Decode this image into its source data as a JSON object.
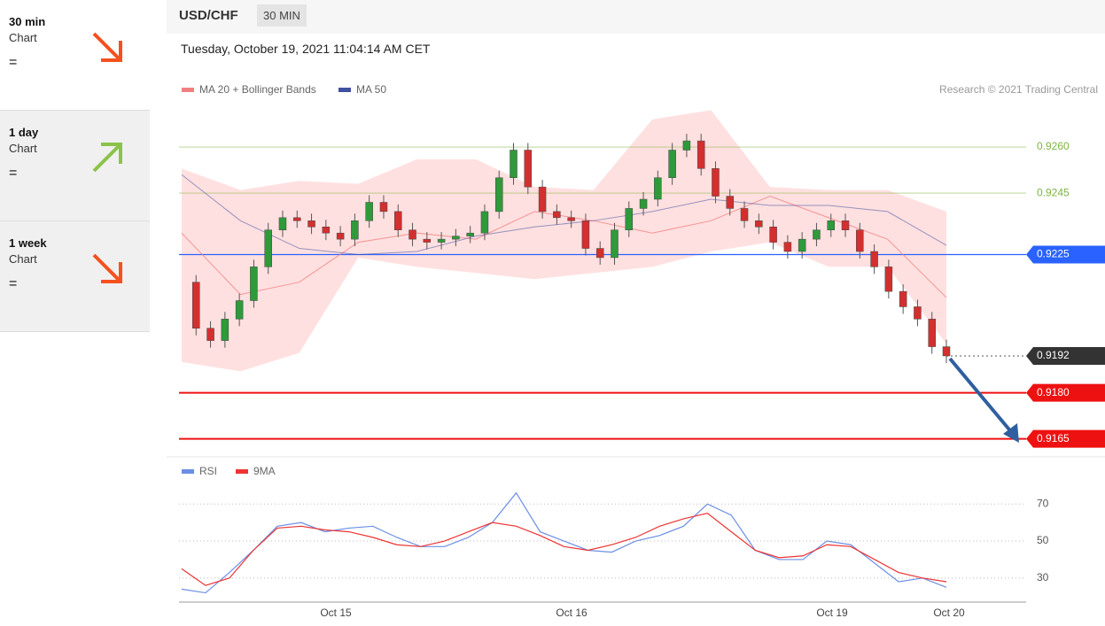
{
  "sidebar": [
    {
      "period": "30 min",
      "label": "Chart",
      "signal": "="
    },
    {
      "period": "1 day",
      "label": "Chart",
      "signal": "="
    },
    {
      "period": "1 week",
      "label": "Chart",
      "signal": "="
    }
  ],
  "header": {
    "symbol": "USD/CHF",
    "interval": "30 MIN",
    "timestamp": "Tuesday, October 19, 2021 11:04:14 AM CET"
  },
  "price_chart": {
    "type": "candlestick",
    "credit": "Research © 2021 Trading Central",
    "legend": [
      {
        "name": "MA 20 + Bollinger Bands",
        "color": "#f08080"
      },
      {
        "name": "MA 50",
        "color": "#3f51a0"
      }
    ],
    "ylim": [
      0.916,
      0.9275
    ],
    "levels": [
      {
        "value": 0.926,
        "label": "0.9260",
        "color": "#7cb342",
        "box": false,
        "dotted": false
      },
      {
        "value": 0.9245,
        "label": "0.9245",
        "color": "#7cb342",
        "box": false,
        "dotted": false
      },
      {
        "value": 0.9225,
        "label": "0.9225",
        "color": "#2962ff",
        "box": true,
        "dotted": false
      },
      {
        "value": 0.9192,
        "label": "0.9192",
        "color": "#333333",
        "box": true,
        "dotted": true
      },
      {
        "value": 0.918,
        "label": "0.9180",
        "color": "#ee1111",
        "box": true,
        "dotted": false
      },
      {
        "value": 0.9165,
        "label": "0.9165",
        "color": "#ee1111",
        "box": true,
        "dotted": false
      }
    ],
    "closes": [
      0.9216,
      0.9201,
      0.9197,
      0.9204,
      0.921,
      0.9221,
      0.9233,
      0.9237,
      0.9236,
      0.9234,
      0.9232,
      0.923,
      0.9236,
      0.9242,
      0.9239,
      0.9233,
      0.923,
      0.9229,
      0.923,
      0.9231,
      0.9232,
      0.9239,
      0.925,
      0.9259,
      0.9247,
      0.9239,
      0.9237,
      0.9236,
      0.9227,
      0.9224,
      0.9233,
      0.924,
      0.9243,
      0.925,
      0.9259,
      0.9262,
      0.9253,
      0.9244,
      0.924,
      0.9236,
      0.9234,
      0.9229,
      0.9226,
      0.923,
      0.9233,
      0.9236,
      0.9233,
      0.9226,
      0.9221,
      0.9213,
      0.9208,
      0.9204,
      0.9195,
      0.9192
    ],
    "ma20": [
      0.9232,
      0.9212,
      0.9216,
      0.9229,
      0.9232,
      0.923,
      0.9239,
      0.9236,
      0.9232,
      0.9236,
      0.9244,
      0.9237,
      0.923,
      0.9211
    ],
    "bb_upper": [
      0.9253,
      0.9246,
      0.9249,
      0.9248,
      0.9256,
      0.9256,
      0.9247,
      0.9246,
      0.9269,
      0.9272,
      0.9247,
      0.9246,
      0.9246,
      0.9239
    ],
    "bb_lower": [
      0.919,
      0.9187,
      0.9193,
      0.9224,
      0.9221,
      0.9219,
      0.9217,
      0.9219,
      0.9221,
      0.9226,
      0.9229,
      0.9221,
      0.9221,
      0.9196
    ],
    "ma50": [
      0.9251,
      0.9236,
      0.9227,
      0.9225,
      0.9226,
      0.9231,
      0.9234,
      0.9236,
      0.9239,
      0.9243,
      0.9241,
      0.9241,
      0.9239,
      0.9228
    ]
  },
  "rsi_chart": {
    "type": "line",
    "ylim": [
      17,
      84
    ],
    "yticks": [
      30,
      50,
      70
    ],
    "series": [
      {
        "name": "RSI",
        "color": "#6b8fe6",
        "values": [
          24,
          22,
          33,
          45,
          58,
          60,
          55,
          57,
          58,
          52,
          47,
          47,
          52,
          60,
          76,
          55,
          50,
          45,
          44,
          50,
          53,
          58,
          70,
          64,
          45,
          40,
          40,
          50,
          48,
          38,
          28,
          30,
          25
        ]
      },
      {
        "name": "9MA",
        "color": "#ee3333",
        "values": [
          35,
          26,
          30,
          45,
          57,
          58,
          56,
          55,
          52,
          48,
          47,
          50,
          55,
          60,
          58,
          53,
          47,
          45,
          48,
          52,
          58,
          62,
          65,
          55,
          45,
          41,
          42,
          48,
          47,
          40,
          33,
          30,
          28
        ]
      }
    ]
  },
  "x_labels": [
    "Oct 15",
    "Oct 16",
    "Oct 19",
    "Oct 20"
  ]
}
